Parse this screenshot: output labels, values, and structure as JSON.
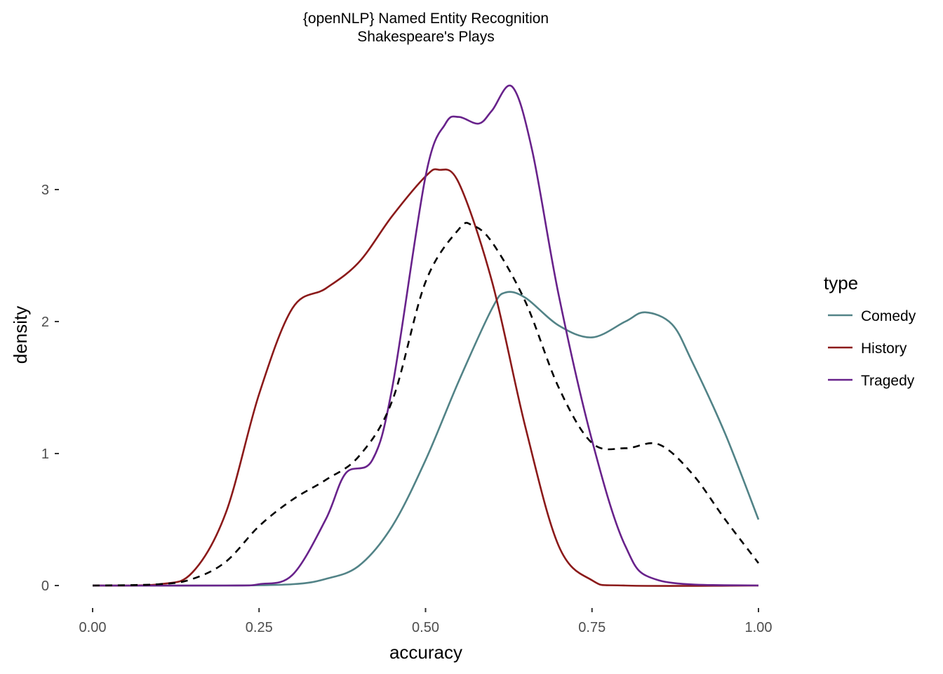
{
  "chart_data": {
    "type": "line",
    "title": "{openNLP} Named Entity Recognition",
    "subtitle": "Shakespeare's Plays",
    "xlabel": "accuracy",
    "ylabel": "density",
    "xlim": [
      0,
      1
    ],
    "ylim": [
      0,
      3.8
    ],
    "x_ticks": [
      0,
      0.25,
      0.5,
      0.75,
      1.0
    ],
    "x_tick_labels": [
      "0.00",
      "0.25",
      "0.50",
      "0.75",
      "1.00"
    ],
    "y_ticks": [
      0,
      1,
      2,
      3
    ],
    "y_tick_labels": [
      "0",
      "1",
      "2",
      "3"
    ],
    "grid": false,
    "legend": {
      "title": "type",
      "position": "right"
    },
    "series": [
      {
        "name": "Comedy",
        "color": "#528387",
        "dashed": false,
        "x": [
          0.0,
          0.2,
          0.3,
          0.35,
          0.4,
          0.45,
          0.5,
          0.55,
          0.6,
          0.62,
          0.65,
          0.7,
          0.75,
          0.8,
          0.83,
          0.87,
          0.9,
          0.95,
          1.0
        ],
        "y": [
          0.0,
          0.0,
          0.01,
          0.05,
          0.15,
          0.45,
          0.95,
          1.55,
          2.1,
          2.22,
          2.18,
          1.97,
          1.88,
          2.0,
          2.07,
          1.98,
          1.7,
          1.15,
          0.5
        ]
      },
      {
        "name": "History",
        "color": "#8B1A1A",
        "dashed": false,
        "x": [
          0.0,
          0.1,
          0.15,
          0.2,
          0.25,
          0.3,
          0.35,
          0.4,
          0.45,
          0.5,
          0.52,
          0.55,
          0.6,
          0.65,
          0.7,
          0.75,
          0.8,
          1.0
        ],
        "y": [
          0.0,
          0.01,
          0.1,
          0.55,
          1.45,
          2.1,
          2.25,
          2.45,
          2.8,
          3.1,
          3.15,
          3.05,
          2.3,
          1.2,
          0.3,
          0.04,
          0.0,
          0.0
        ]
      },
      {
        "name": "Tragedy",
        "color": "#68228B",
        "dashed": false,
        "x": [
          0.0,
          0.2,
          0.25,
          0.3,
          0.35,
          0.38,
          0.42,
          0.45,
          0.5,
          0.53,
          0.55,
          0.58,
          0.6,
          0.63,
          0.66,
          0.7,
          0.75,
          0.8,
          0.85,
          1.0
        ],
        "y": [
          0.0,
          0.0,
          0.01,
          0.08,
          0.5,
          0.85,
          0.95,
          1.5,
          3.1,
          3.5,
          3.55,
          3.5,
          3.6,
          3.78,
          3.3,
          2.2,
          1.1,
          0.3,
          0.04,
          0.0
        ]
      },
      {
        "name": "",
        "color": "#000000",
        "dashed": true,
        "x": [
          0.0,
          0.1,
          0.15,
          0.2,
          0.25,
          0.3,
          0.35,
          0.4,
          0.45,
          0.5,
          0.55,
          0.57,
          0.6,
          0.65,
          0.7,
          0.75,
          0.8,
          0.85,
          0.9,
          0.95,
          1.0
        ],
        "y": [
          0.0,
          0.01,
          0.05,
          0.18,
          0.45,
          0.65,
          0.8,
          0.98,
          1.4,
          2.3,
          2.7,
          2.73,
          2.6,
          2.15,
          1.5,
          1.08,
          1.04,
          1.07,
          0.85,
          0.5,
          0.17
        ]
      }
    ]
  }
}
